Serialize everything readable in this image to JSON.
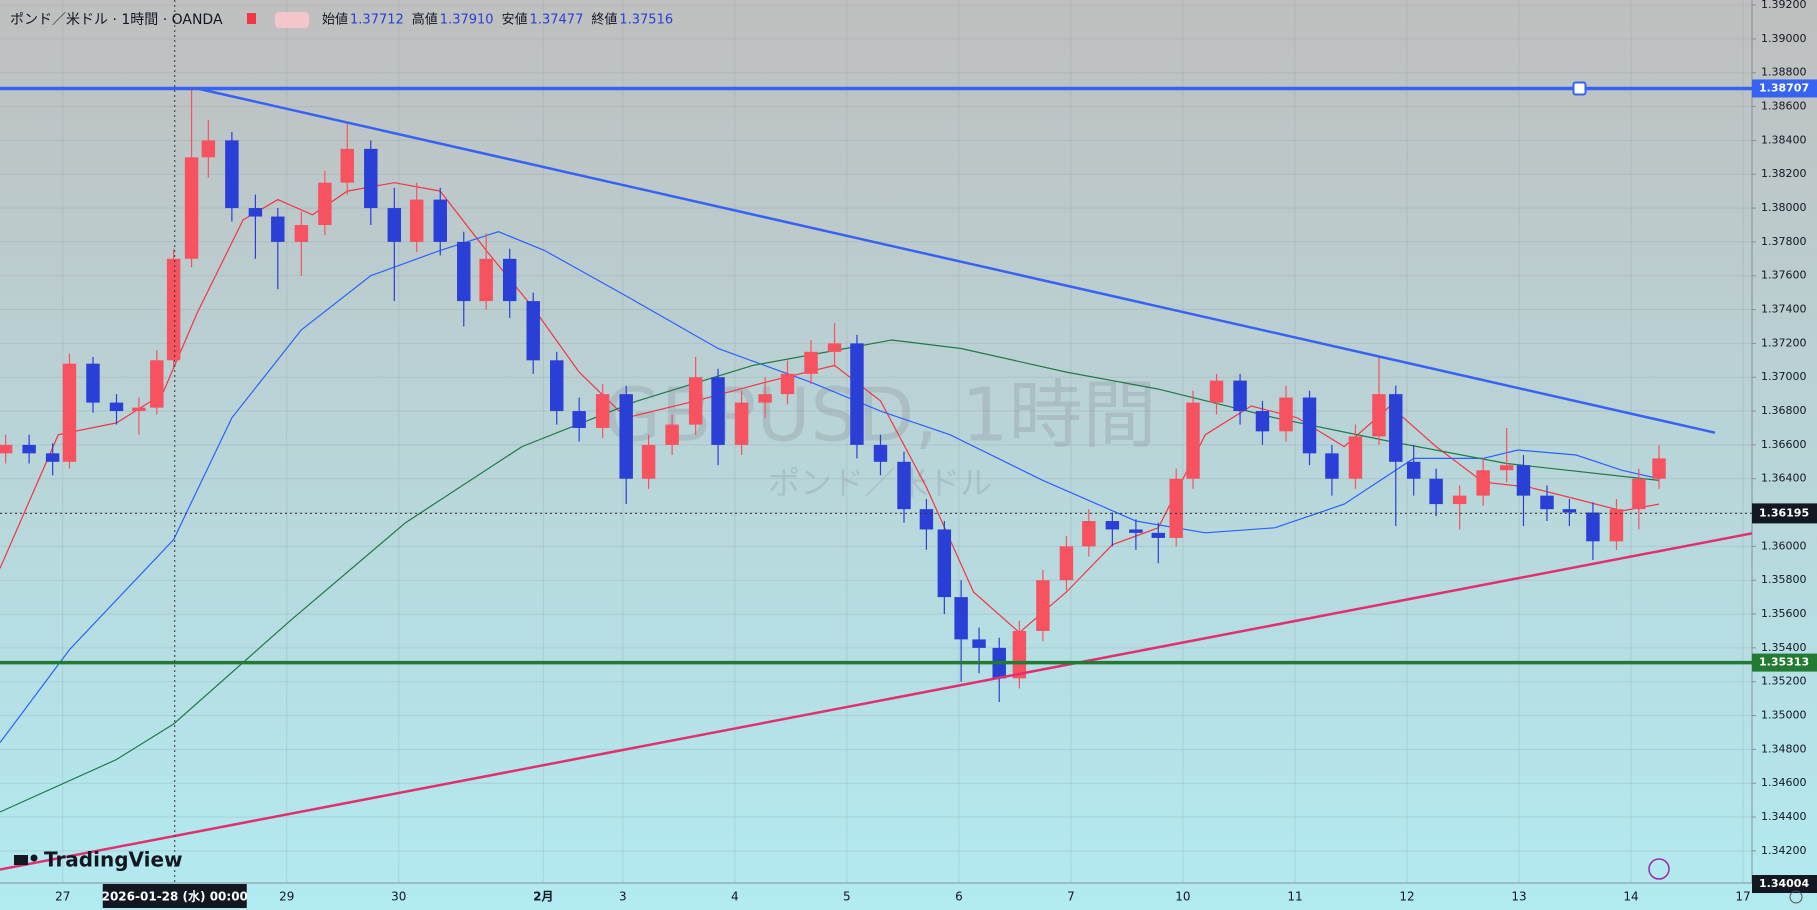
{
  "chart_data": {
    "type": "candlestick",
    "title": "ポンド／米ドル · 1時間 · OANDA",
    "watermark": "GBPUSD, 1時間",
    "watermark_sub": "ポンド／米ドル",
    "brand": "TradingView",
    "ohlc_readout": [
      {
        "label": "始値",
        "value": "1.37712"
      },
      {
        "label": "高値",
        "value": "1.37910"
      },
      {
        "label": "安値",
        "value": "1.37477"
      },
      {
        "label": "終値",
        "value": "1.37516"
      }
    ],
    "xlim": [
      -0.56,
      15.08
    ],
    "ylim": [
      1.3401,
      1.3923
    ],
    "xticks": [
      {
        "value": 0,
        "label": "27"
      },
      {
        "value": 2,
        "label": "29"
      },
      {
        "value": 3,
        "label": "30"
      },
      {
        "value": 4.29,
        "label": "2月"
      },
      {
        "value": 5,
        "label": "3"
      },
      {
        "value": 6,
        "label": "4"
      },
      {
        "value": 7,
        "label": "5"
      },
      {
        "value": 8,
        "label": "6"
      },
      {
        "value": 9,
        "label": "7"
      },
      {
        "value": 10,
        "label": "10"
      },
      {
        "value": 11,
        "label": "11"
      },
      {
        "value": 12,
        "label": "12"
      },
      {
        "value": 13,
        "label": "13"
      },
      {
        "value": 14,
        "label": "14"
      },
      {
        "value": 15,
        "label": "17"
      }
    ],
    "yticks": [
      {
        "value": 1.342,
        "label": "1.34200"
      },
      {
        "value": 1.344,
        "label": "1.34400"
      },
      {
        "value": 1.346,
        "label": "1.34600"
      },
      {
        "value": 1.348,
        "label": "1.34800"
      },
      {
        "value": 1.35,
        "label": "1.35000"
      },
      {
        "value": 1.352,
        "label": "1.35200"
      },
      {
        "value": 1.354,
        "label": "1.35400"
      },
      {
        "value": 1.356,
        "label": "1.35600"
      },
      {
        "value": 1.358,
        "label": "1.35800"
      },
      {
        "value": 1.36,
        "label": "1.36000"
      },
      {
        "value": 1.362,
        "label": "1.36200"
      },
      {
        "value": 1.364,
        "label": "1.36400"
      },
      {
        "value": 1.366,
        "label": "1.36600"
      },
      {
        "value": 1.368,
        "label": "1.36800"
      },
      {
        "value": 1.37,
        "label": "1.37000"
      },
      {
        "value": 1.372,
        "label": "1.37200"
      },
      {
        "value": 1.374,
        "label": "1.37400"
      },
      {
        "value": 1.376,
        "label": "1.37600"
      },
      {
        "value": 1.378,
        "label": "1.37800"
      },
      {
        "value": 1.38,
        "label": "1.38000"
      },
      {
        "value": 1.382,
        "label": "1.38200"
      },
      {
        "value": 1.384,
        "label": "1.38400"
      },
      {
        "value": 1.386,
        "label": "1.38600"
      },
      {
        "value": 1.388,
        "label": "1.38800"
      },
      {
        "value": 1.39,
        "label": "1.39000"
      },
      {
        "value": 1.392,
        "label": "1.39200"
      }
    ],
    "grid": true,
    "up_color": "#f7525f",
    "down_color": "#2a3fd6",
    "candles": {
      "x": [
        -0.51,
        -0.3,
        -0.09,
        0.06,
        0.27,
        0.48,
        0.68,
        0.84,
        0.99,
        1.15,
        1.3,
        1.51,
        1.72,
        1.92,
        2.13,
        2.34,
        2.54,
        2.75,
        2.96,
        3.16,
        3.37,
        3.58,
        3.78,
        3.99,
        4.2,
        4.41,
        4.61,
        4.82,
        5.03,
        5.23,
        5.44,
        5.65,
        5.85,
        6.06,
        6.27,
        6.47,
        6.68,
        6.89,
        7.09,
        7.3,
        7.51,
        7.71,
        7.87,
        8.02,
        8.18,
        8.36,
        8.54,
        8.75,
        8.96,
        9.16,
        9.37,
        9.58,
        9.78,
        9.94,
        10.09,
        10.3,
        10.51,
        10.71,
        10.92,
        11.13,
        11.33,
        11.54,
        11.75,
        11.9,
        12.06,
        12.26,
        12.47,
        12.68,
        12.89,
        13.04,
        13.25,
        13.45,
        13.66,
        13.87,
        14.07,
        14.25
      ],
      "open": [
        1.3655,
        1.366,
        1.3655,
        1.365,
        1.3708,
        1.3685,
        1.368,
        1.3682,
        1.371,
        1.377,
        1.383,
        1.384,
        1.38,
        1.3795,
        1.378,
        1.379,
        1.3815,
        1.3835,
        1.38,
        1.378,
        1.3805,
        1.378,
        1.3745,
        1.377,
        1.3745,
        1.371,
        1.368,
        1.367,
        1.369,
        1.364,
        1.366,
        1.3672,
        1.37,
        1.366,
        1.3685,
        1.369,
        1.3702,
        1.3715,
        1.372,
        1.366,
        1.365,
        1.3622,
        1.361,
        1.357,
        1.3545,
        1.354,
        1.3522,
        1.355,
        1.358,
        1.36,
        1.3615,
        1.361,
        1.3608,
        1.3605,
        1.364,
        1.3685,
        1.3698,
        1.368,
        1.3668,
        1.3688,
        1.3655,
        1.364,
        1.3665,
        1.369,
        1.365,
        1.364,
        1.3625,
        1.363,
        1.3645,
        1.3648,
        1.363,
        1.3622,
        1.362,
        1.3603,
        1.3622,
        1.364
      ],
      "high": [
        1.3666,
        1.3666,
        1.3661,
        1.3714,
        1.3712,
        1.369,
        1.3688,
        1.3716,
        1.3776,
        1.387,
        1.3852,
        1.3845,
        1.3808,
        1.38,
        1.3798,
        1.3822,
        1.385,
        1.384,
        1.3812,
        1.3815,
        1.3812,
        1.3786,
        1.3785,
        1.3776,
        1.375,
        1.3715,
        1.3688,
        1.3696,
        1.3695,
        1.3666,
        1.3678,
        1.3712,
        1.3705,
        1.3692,
        1.37,
        1.371,
        1.3722,
        1.3732,
        1.3725,
        1.3666,
        1.3656,
        1.3628,
        1.3615,
        1.358,
        1.3552,
        1.3546,
        1.3556,
        1.3586,
        1.3606,
        1.3622,
        1.362,
        1.3616,
        1.3614,
        1.3646,
        1.3692,
        1.3702,
        1.3702,
        1.3686,
        1.3695,
        1.3692,
        1.366,
        1.3672,
        1.3712,
        1.3695,
        1.366,
        1.3646,
        1.3636,
        1.3652,
        1.367,
        1.3654,
        1.3636,
        1.3628,
        1.3626,
        1.3628,
        1.3646,
        1.366
      ],
      "low": [
        1.3649,
        1.3649,
        1.3642,
        1.3646,
        1.3679,
        1.3672,
        1.3666,
        1.3678,
        1.3705,
        1.3765,
        1.3818,
        1.3792,
        1.377,
        1.3752,
        1.376,
        1.3784,
        1.3808,
        1.379,
        1.3745,
        1.3774,
        1.3772,
        1.373,
        1.374,
        1.3735,
        1.3702,
        1.3672,
        1.3662,
        1.3664,
        1.3625,
        1.3634,
        1.3654,
        1.3666,
        1.3648,
        1.3654,
        1.3676,
        1.3684,
        1.3696,
        1.3706,
        1.3652,
        1.3642,
        1.3614,
        1.3598,
        1.356,
        1.352,
        1.3525,
        1.3508,
        1.3516,
        1.3544,
        1.3574,
        1.3594,
        1.36,
        1.3598,
        1.359,
        1.36,
        1.3634,
        1.3678,
        1.3672,
        1.366,
        1.3662,
        1.3648,
        1.363,
        1.3634,
        1.366,
        1.3612,
        1.363,
        1.3618,
        1.361,
        1.3624,
        1.3638,
        1.3612,
        1.3615,
        1.3612,
        1.3592,
        1.3598,
        1.361,
        1.3634
      ],
      "close": [
        1.366,
        1.3655,
        1.365,
        1.3708,
        1.3685,
        1.368,
        1.3682,
        1.371,
        1.377,
        1.383,
        1.384,
        1.38,
        1.3795,
        1.378,
        1.379,
        1.3815,
        1.3835,
        1.38,
        1.378,
        1.3805,
        1.378,
        1.3745,
        1.377,
        1.3745,
        1.371,
        1.368,
        1.367,
        1.369,
        1.364,
        1.366,
        1.3672,
        1.37,
        1.366,
        1.3685,
        1.369,
        1.3702,
        1.3715,
        1.372,
        1.366,
        1.365,
        1.3622,
        1.361,
        1.357,
        1.3545,
        1.354,
        1.3522,
        1.355,
        1.358,
        1.36,
        1.3615,
        1.361,
        1.3608,
        1.3605,
        1.364,
        1.3685,
        1.3698,
        1.368,
        1.3668,
        1.3688,
        1.3655,
        1.364,
        1.3665,
        1.369,
        1.365,
        1.364,
        1.3625,
        1.363,
        1.3645,
        1.3648,
        1.363,
        1.3622,
        1.362,
        1.3603,
        1.3622,
        1.364,
        1.3652
      ]
    },
    "moving_averages": [
      {
        "color": "#f23645",
        "x": [
          -0.56,
          -0.04,
          0.48,
          0.89,
          1.2,
          1.61,
          1.92,
          2.23,
          2.54,
          2.96,
          3.37,
          3.78,
          4.2,
          4.61,
          5.03,
          5.65,
          6.27,
          6.89,
          7.3,
          7.71,
          8.13,
          8.54,
          8.96,
          9.37,
          9.78,
          10.2,
          10.61,
          11.02,
          11.44,
          11.85,
          12.26,
          12.68,
          13.09,
          13.51,
          13.92,
          14.25
        ],
        "values": [
          1.3587,
          1.3666,
          1.3673,
          1.369,
          1.3738,
          1.3793,
          1.3805,
          1.3796,
          1.381,
          1.3815,
          1.381,
          1.3775,
          1.3741,
          1.3703,
          1.3676,
          1.3686,
          1.3697,
          1.3707,
          1.3686,
          1.3635,
          1.3573,
          1.3549,
          1.3573,
          1.3601,
          1.3611,
          1.3666,
          1.3683,
          1.3676,
          1.3659,
          1.3683,
          1.3659,
          1.3638,
          1.3635,
          1.3628,
          1.3621,
          1.3625
        ]
      },
      {
        "color": "#2962ff",
        "x": [
          -0.56,
          0.06,
          0.99,
          1.51,
          2.13,
          2.75,
          3.37,
          3.89,
          4.3,
          5.03,
          5.85,
          6.68,
          7.3,
          7.92,
          8.75,
          9.58,
          10.2,
          10.82,
          11.44,
          12.06,
          12.68,
          12.99,
          13.51,
          13.92,
          14.25
        ],
        "values": [
          1.3484,
          1.3539,
          1.3604,
          1.3676,
          1.3728,
          1.376,
          1.3775,
          1.3786,
          1.3775,
          1.3748,
          1.3717,
          1.3697,
          1.368,
          1.3666,
          1.3639,
          1.3615,
          1.3608,
          1.3611,
          1.3625,
          1.3652,
          1.3652,
          1.3657,
          1.3654,
          1.3645,
          1.364
        ]
      },
      {
        "color": "#1e7a4a",
        "x": [
          -0.56,
          0.48,
          0.99,
          2.03,
          3.06,
          4.1,
          5.13,
          6.16,
          6.99,
          7.4,
          8.02,
          8.96,
          9.78,
          10.82,
          11.85,
          12.89,
          14.25
        ],
        "values": [
          1.3443,
          1.3474,
          1.3495,
          1.3556,
          1.3614,
          1.3659,
          1.3686,
          1.3707,
          1.3717,
          1.3722,
          1.3717,
          1.3703,
          1.3693,
          1.3676,
          1.3662,
          1.3649,
          1.3639
        ]
      }
    ],
    "trendlines": [
      {
        "color": "#3763f4",
        "x": [
          1.2,
          14.75
        ],
        "y": [
          1.38707,
          1.36672
        ]
      },
      {
        "color": "#e0306f",
        "x": [
          -0.56,
          15.08
        ],
        "y": [
          1.3409,
          1.36077
        ]
      }
    ],
    "price_lines": [
      {
        "value": 1.38707,
        "color": "#3763f4",
        "handle_x": 13.54
      },
      {
        "value": 1.35313,
        "color": "#237a32"
      }
    ],
    "crosshair": {
      "x": 1,
      "x_label": "2026-01-28 (水)  00:00",
      "y": 1.36195
    },
    "bottom_price_label": 1.34004
  }
}
